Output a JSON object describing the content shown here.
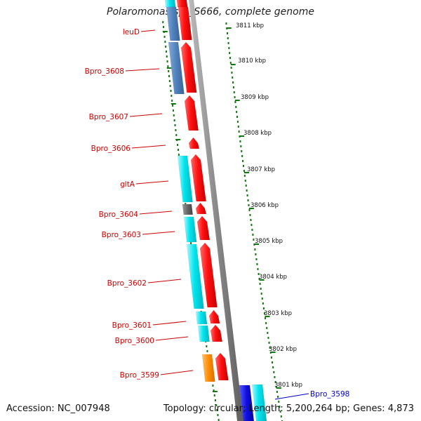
{
  "title": "Polaromonas sp. JS666, complete genome",
  "footer": {
    "accession": "Accession: NC_007948",
    "summary": "Topology: circular; Length: 5,200,264 bp; Genes: 4,873"
  },
  "scale_labels": [
    "3811 kbp",
    "3810 kbp",
    "3809 kbp",
    "3808 kbp",
    "3807 kbp",
    "3806 kbp",
    "3805 kbp",
    "3804 kbp",
    "3803 kbp",
    "3802 kbp",
    "3801 kbp"
  ],
  "genes": [
    {
      "name": "leuD",
      "label_color": "#cc0000"
    },
    {
      "name": "Bpro_3608",
      "label_color": "#cc0000"
    },
    {
      "name": "Bpro_3607",
      "label_color": "#cc0000"
    },
    {
      "name": "Bpro_3606",
      "label_color": "#cc0000"
    },
    {
      "name": "gltA",
      "label_color": "#cc0000"
    },
    {
      "name": "Bpro_3604",
      "label_color": "#cc0000"
    },
    {
      "name": "Bpro_3603",
      "label_color": "#cc0000"
    },
    {
      "name": "Bpro_3602",
      "label_color": "#cc0000"
    },
    {
      "name": "Bpro_3601",
      "label_color": "#cc0000"
    },
    {
      "name": "Bpro_3600",
      "label_color": "#cc0000"
    },
    {
      "name": "Bpro_3599",
      "label_color": "#cc0000"
    },
    {
      "name": "Bpro_3598",
      "label_color": "#0000cc"
    }
  ],
  "colors": {
    "forward_cds": "#ee0000",
    "cog_cyan": "#00e5ee",
    "cog_steel": "#4f81bd",
    "cog_gray": "#666666",
    "cog_orange": "#ff8c00",
    "cog_blue": "#1010dd",
    "backbone": "#8a8a8a",
    "tick": "#117711"
  }
}
